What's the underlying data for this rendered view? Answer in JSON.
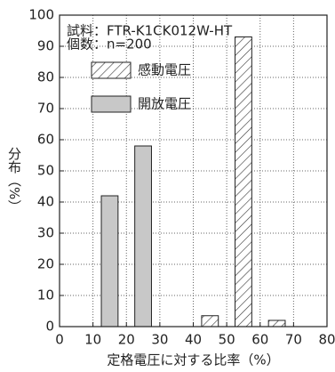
{
  "chart_data": {
    "type": "bar",
    "annotations": [
      "試料：FTR-K1CK012W-HT",
      "個数：n=200"
    ],
    "x_label": "定格電圧に対する比率（%）",
    "y_label": "分布（%）",
    "bar_width": 5,
    "series": [
      {
        "name": "感動電圧",
        "color": "#ffffff",
        "hatch": true,
        "x": [
          45,
          55,
          65
        ],
        "values": [
          3.5,
          93,
          2
        ]
      },
      {
        "name": "開放電圧",
        "color": "#c8c8c8",
        "hatch": false,
        "x": [
          15,
          25
        ],
        "values": [
          42,
          58
        ]
      }
    ],
    "xlim": [
      0,
      80
    ],
    "xticks": [
      0,
      10,
      20,
      30,
      40,
      50,
      60,
      70,
      80
    ],
    "ylim": [
      0,
      100
    ],
    "yticks": [
      0,
      10,
      20,
      30,
      40,
      50,
      60,
      70,
      80,
      90,
      100
    ],
    "grid": true
  }
}
